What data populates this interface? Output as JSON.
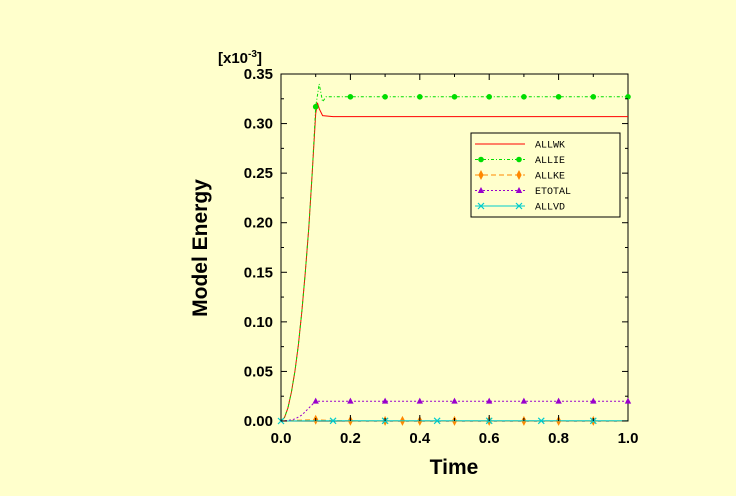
{
  "chart_data": {
    "type": "line",
    "title": "",
    "xlabel": "Time",
    "ylabel": "Model Energy",
    "y_scale_label": "[x10-3]",
    "y_scale_base": "[x10",
    "y_scale_exp": "-3",
    "y_scale_close": "]",
    "xlim": [
      0.0,
      1.0
    ],
    "ylim": [
      0.0,
      0.35
    ],
    "x_ticks": [
      0.0,
      0.2,
      0.4,
      0.6,
      0.8,
      1.0
    ],
    "x_tick_labels": [
      "0.0",
      "0.2",
      "0.4",
      "0.6",
      "0.8",
      "1.0"
    ],
    "y_ticks": [
      0.0,
      0.05,
      0.1,
      0.15,
      0.2,
      0.25,
      0.3,
      0.35
    ],
    "y_tick_labels": [
      "0.00",
      "0.05",
      "0.10",
      "0.15",
      "0.20",
      "0.25",
      "0.30",
      "0.35"
    ],
    "legend_position": "top-right",
    "grid": false,
    "series": [
      {
        "name": "ALLWK",
        "color": "#ff0000",
        "dash": "",
        "marker": "none",
        "x": [
          0.0,
          0.01,
          0.02,
          0.03,
          0.04,
          0.05,
          0.06,
          0.07,
          0.08,
          0.09,
          0.1,
          0.105,
          0.11,
          0.12,
          0.15,
          0.2,
          0.3,
          0.4,
          0.5,
          0.6,
          0.7,
          0.8,
          0.9,
          1.0
        ],
        "y": [
          0.0,
          0.0035,
          0.013,
          0.029,
          0.05,
          0.077,
          0.11,
          0.15,
          0.195,
          0.25,
          0.31,
          0.321,
          0.315,
          0.308,
          0.307,
          0.307,
          0.307,
          0.307,
          0.307,
          0.307,
          0.307,
          0.307,
          0.307,
          0.307
        ]
      },
      {
        "name": "ALLIE",
        "color": "#00dd00",
        "dash": "3,2,1,2",
        "marker": "circle",
        "x": [
          0.0,
          0.01,
          0.02,
          0.03,
          0.04,
          0.05,
          0.06,
          0.07,
          0.08,
          0.09,
          0.1,
          0.11,
          0.12,
          0.13,
          0.15,
          0.2,
          0.3,
          0.4,
          0.5,
          0.6,
          0.7,
          0.8,
          0.9,
          1.0
        ],
        "y": [
          0.0,
          0.0035,
          0.013,
          0.029,
          0.05,
          0.077,
          0.11,
          0.15,
          0.195,
          0.25,
          0.317,
          0.34,
          0.322,
          0.327,
          0.327,
          0.327,
          0.327,
          0.327,
          0.327,
          0.327,
          0.327,
          0.327,
          0.327,
          0.327
        ],
        "marker_x": [
          0.1,
          0.2,
          0.3,
          0.4,
          0.5,
          0.6,
          0.7,
          0.8,
          0.9,
          1.0
        ]
      },
      {
        "name": "ALLKE",
        "color": "#ff8800",
        "dash": "5,3",
        "marker": "diamond",
        "x": [
          0.0,
          0.05,
          0.1,
          0.15,
          0.2,
          0.3,
          0.4,
          0.5,
          0.6,
          0.7,
          0.8,
          0.9,
          1.0
        ],
        "y": [
          0.0,
          0.0008,
          0.0012,
          0.0005,
          0.0002,
          0.0001,
          0.0001,
          0.0001,
          0.0001,
          0.0001,
          0.0001,
          0.0001,
          0.0001
        ],
        "marker_x": [
          0.1,
          0.2,
          0.3,
          0.35,
          0.4,
          0.5,
          0.6,
          0.7,
          0.8,
          0.9
        ]
      },
      {
        "name": "ETOTAL",
        "color": "#9900cc",
        "dash": "2,2",
        "marker": "triangle",
        "x": [
          0.0,
          0.02,
          0.04,
          0.06,
          0.08,
          0.1,
          0.12,
          0.2,
          0.3,
          0.4,
          0.5,
          0.6,
          0.7,
          0.8,
          0.9,
          1.0
        ],
        "y": [
          0.0,
          0.0005,
          0.002,
          0.006,
          0.013,
          0.02,
          0.02,
          0.02,
          0.02,
          0.02,
          0.02,
          0.02,
          0.02,
          0.02,
          0.02,
          0.02
        ],
        "marker_x": [
          0.1,
          0.2,
          0.3,
          0.4,
          0.5,
          0.6,
          0.7,
          0.8,
          0.9,
          1.0
        ]
      },
      {
        "name": "ALLVD",
        "color": "#00cccc",
        "dash": "",
        "marker": "x",
        "x": [
          0.0,
          0.1,
          0.2,
          0.3,
          0.4,
          0.5,
          0.6,
          0.7,
          0.8,
          0.9,
          1.0
        ],
        "y": [
          0.0,
          0.0002,
          0.0002,
          0.0002,
          0.0002,
          0.0002,
          0.0002,
          0.0002,
          0.0002,
          0.0002,
          0.0002
        ],
        "marker_x": [
          0.0,
          0.15,
          0.3,
          0.45,
          0.6,
          0.75,
          0.9
        ]
      }
    ]
  }
}
